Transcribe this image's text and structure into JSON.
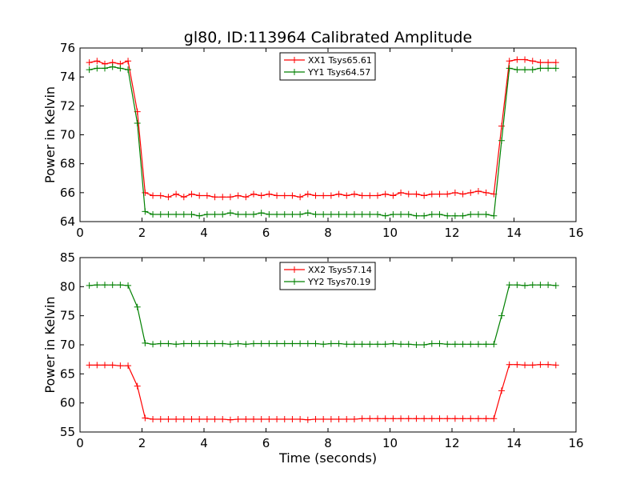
{
  "title": "gl80, ID:113964 Calibrated Amplitude",
  "xlabel": "Time (seconds)",
  "colors": {
    "red": "#ff0000",
    "green": "#008000"
  },
  "chart_data": [
    {
      "type": "line",
      "ylabel": "Power in Kelvin",
      "xlim": [
        0,
        16
      ],
      "ylim": [
        64,
        76
      ],
      "xticks": [
        0,
        2,
        4,
        6,
        8,
        10,
        12,
        14,
        16
      ],
      "yticks": [
        64,
        66,
        68,
        70,
        72,
        74,
        76
      ],
      "legend_position": "top-center",
      "x": [
        0.3,
        0.55,
        0.8,
        1.05,
        1.3,
        1.55,
        1.85,
        2.1,
        2.35,
        2.6,
        2.85,
        3.1,
        3.35,
        3.6,
        3.85,
        4.1,
        4.35,
        4.6,
        4.85,
        5.1,
        5.35,
        5.6,
        5.85,
        6.1,
        6.35,
        6.6,
        6.85,
        7.1,
        7.35,
        7.6,
        7.85,
        8.1,
        8.35,
        8.6,
        8.85,
        9.1,
        9.35,
        9.6,
        9.85,
        10.1,
        10.35,
        10.6,
        10.85,
        11.1,
        11.35,
        11.6,
        11.85,
        12.1,
        12.35,
        12.6,
        12.85,
        13.1,
        13.35,
        13.6,
        13.85,
        14.1,
        14.35,
        14.6,
        14.85,
        15.1,
        15.35
      ],
      "series": [
        {
          "name": "XX1 Tsys65.61",
          "color": "#ff0000",
          "values": [
            75.0,
            75.1,
            74.9,
            75.0,
            74.9,
            75.1,
            71.6,
            66.0,
            65.8,
            65.8,
            65.7,
            65.9,
            65.7,
            65.9,
            65.8,
            65.8,
            65.7,
            65.7,
            65.7,
            65.8,
            65.7,
            65.9,
            65.8,
            65.9,
            65.8,
            65.8,
            65.8,
            65.7,
            65.9,
            65.8,
            65.8,
            65.8,
            65.9,
            65.8,
            65.9,
            65.8,
            65.8,
            65.8,
            65.9,
            65.8,
            66.0,
            65.9,
            65.9,
            65.8,
            65.9,
            65.9,
            65.9,
            66.0,
            65.9,
            66.0,
            66.1,
            66.0,
            65.9,
            70.6,
            75.1,
            75.2,
            75.2,
            75.1,
            75.0,
            75.0,
            75.0
          ]
        },
        {
          "name": "YY1 Tsys64.57",
          "color": "#008000",
          "values": [
            74.5,
            74.6,
            74.6,
            74.7,
            74.6,
            74.5,
            70.8,
            64.7,
            64.5,
            64.5,
            64.5,
            64.5,
            64.5,
            64.5,
            64.4,
            64.5,
            64.5,
            64.5,
            64.6,
            64.5,
            64.5,
            64.5,
            64.6,
            64.5,
            64.5,
            64.5,
            64.5,
            64.5,
            64.6,
            64.5,
            64.5,
            64.5,
            64.5,
            64.5,
            64.5,
            64.5,
            64.5,
            64.5,
            64.4,
            64.5,
            64.5,
            64.5,
            64.4,
            64.4,
            64.5,
            64.5,
            64.4,
            64.4,
            64.4,
            64.5,
            64.5,
            64.5,
            64.4,
            69.6,
            74.6,
            74.5,
            74.5,
            74.5,
            74.6,
            74.6,
            74.6
          ]
        }
      ]
    },
    {
      "type": "line",
      "ylabel": "Power in Kelvin",
      "xlabel": "Time (seconds)",
      "xlim": [
        0,
        16
      ],
      "ylim": [
        55,
        85
      ],
      "xticks": [
        0,
        2,
        4,
        6,
        8,
        10,
        12,
        14,
        16
      ],
      "yticks": [
        55,
        60,
        65,
        70,
        75,
        80,
        85
      ],
      "legend_position": "top-center",
      "x": [
        0.3,
        0.55,
        0.8,
        1.05,
        1.3,
        1.55,
        1.85,
        2.1,
        2.35,
        2.6,
        2.85,
        3.1,
        3.35,
        3.6,
        3.85,
        4.1,
        4.35,
        4.6,
        4.85,
        5.1,
        5.35,
        5.6,
        5.85,
        6.1,
        6.35,
        6.6,
        6.85,
        7.1,
        7.35,
        7.6,
        7.85,
        8.1,
        8.35,
        8.6,
        8.85,
        9.1,
        9.35,
        9.6,
        9.85,
        10.1,
        10.35,
        10.6,
        10.85,
        11.1,
        11.35,
        11.6,
        11.85,
        12.1,
        12.35,
        12.6,
        12.85,
        13.1,
        13.35,
        13.6,
        13.85,
        14.1,
        14.35,
        14.6,
        14.85,
        15.1,
        15.35
      ],
      "series": [
        {
          "name": "XX2 Tsys57.14",
          "color": "#ff0000",
          "values": [
            66.5,
            66.5,
            66.5,
            66.5,
            66.4,
            66.4,
            62.9,
            57.4,
            57.2,
            57.2,
            57.2,
            57.2,
            57.2,
            57.2,
            57.2,
            57.2,
            57.2,
            57.2,
            57.1,
            57.2,
            57.2,
            57.2,
            57.2,
            57.2,
            57.2,
            57.2,
            57.2,
            57.2,
            57.1,
            57.2,
            57.2,
            57.2,
            57.2,
            57.2,
            57.2,
            57.3,
            57.3,
            57.3,
            57.3,
            57.3,
            57.3,
            57.3,
            57.3,
            57.3,
            57.3,
            57.3,
            57.3,
            57.3,
            57.3,
            57.3,
            57.3,
            57.3,
            57.3,
            62.1,
            66.6,
            66.6,
            66.5,
            66.5,
            66.6,
            66.6,
            66.5
          ]
        },
        {
          "name": "YY2 Tsys70.19",
          "color": "#008000",
          "values": [
            80.2,
            80.3,
            80.3,
            80.3,
            80.3,
            80.2,
            76.5,
            70.3,
            70.1,
            70.2,
            70.2,
            70.1,
            70.2,
            70.2,
            70.2,
            70.2,
            70.2,
            70.2,
            70.1,
            70.2,
            70.1,
            70.2,
            70.2,
            70.2,
            70.2,
            70.2,
            70.2,
            70.2,
            70.2,
            70.2,
            70.1,
            70.2,
            70.2,
            70.1,
            70.1,
            70.1,
            70.1,
            70.1,
            70.1,
            70.2,
            70.1,
            70.1,
            70.0,
            70.0,
            70.2,
            70.2,
            70.1,
            70.1,
            70.1,
            70.1,
            70.1,
            70.1,
            70.1,
            75.0,
            80.3,
            80.3,
            80.2,
            80.3,
            80.3,
            80.3,
            80.2
          ]
        }
      ]
    }
  ]
}
